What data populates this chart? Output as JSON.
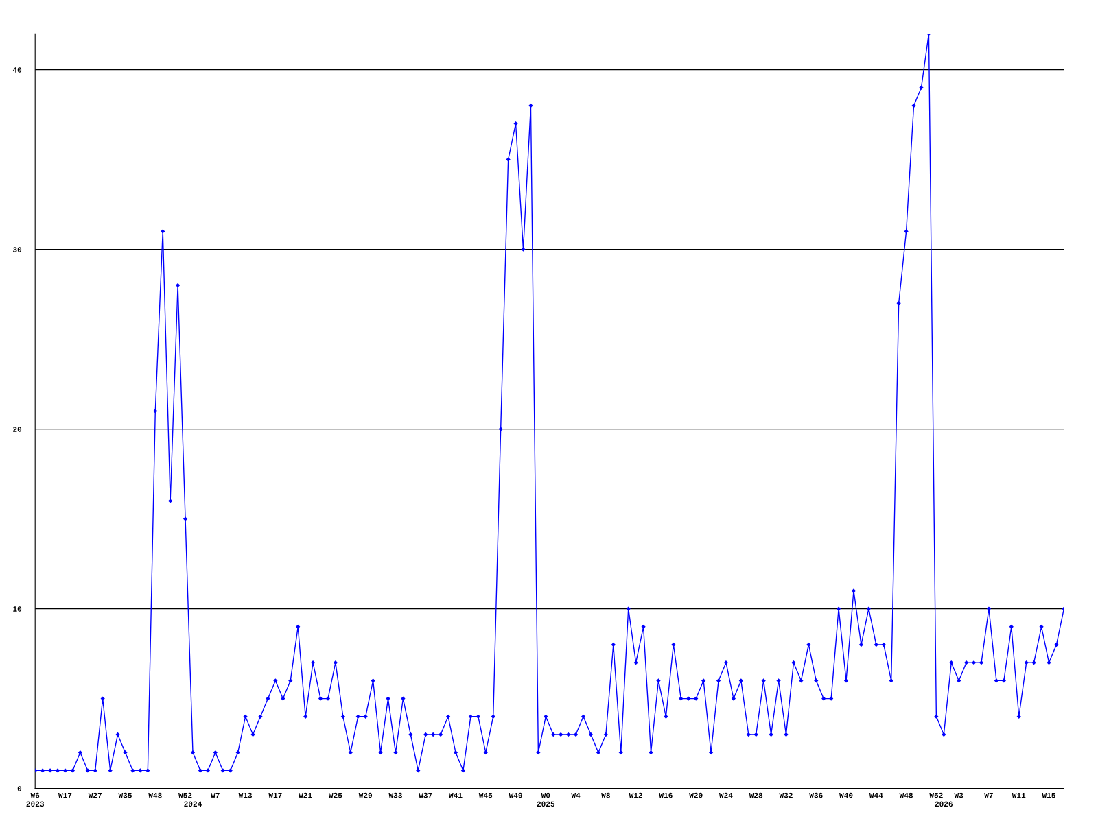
{
  "chart_data": {
    "type": "line",
    "categories": [
      "W6\n2023",
      null,
      null,
      null,
      "W17",
      null,
      null,
      null,
      "W27",
      null,
      null,
      null,
      "W35",
      null,
      null,
      null,
      "W48",
      null,
      null,
      null,
      "W52",
      "\n2024",
      null,
      null,
      "W7",
      null,
      null,
      null,
      "W13",
      null,
      null,
      null,
      "W17",
      null,
      null,
      null,
      "W21",
      null,
      null,
      null,
      "W25",
      null,
      null,
      null,
      "W29",
      null,
      null,
      null,
      "W33",
      null,
      null,
      null,
      "W37",
      null,
      null,
      null,
      "W41",
      null,
      null,
      null,
      "W45",
      null,
      null,
      null,
      "W49",
      null,
      null,
      null,
      "W0\n2025",
      null,
      null,
      null,
      "W4",
      null,
      null,
      null,
      "W8",
      null,
      null,
      null,
      "W12",
      null,
      null,
      null,
      "W16",
      null,
      null,
      null,
      "W20",
      null,
      null,
      null,
      "W24",
      null,
      null,
      null,
      "W28",
      null,
      null,
      null,
      "W32",
      null,
      null,
      null,
      "W36",
      null,
      null,
      null,
      "W40",
      null,
      null,
      null,
      "W44",
      null,
      null,
      null,
      "W48",
      null,
      null,
      null,
      "W52",
      "\n2026",
      null,
      "W3",
      null,
      null,
      null,
      "W7",
      null,
      null,
      null,
      "W11",
      null,
      null,
      null,
      "W15",
      null,
      null
    ],
    "series": [
      {
        "color": "#0000ff",
        "values": [
          1,
          1,
          1,
          1,
          1,
          1,
          2,
          1,
          1,
          5,
          1,
          3,
          2,
          1,
          1,
          1,
          21,
          31,
          16,
          28,
          15,
          2,
          1,
          1,
          2,
          1,
          1,
          2,
          4,
          3,
          4,
          5,
          6,
          5,
          6,
          9,
          4,
          7,
          5,
          5,
          7,
          4,
          2,
          4,
          4,
          6,
          2,
          5,
          2,
          5,
          3,
          1,
          3,
          3,
          3,
          4,
          2,
          1,
          4,
          4,
          2,
          4,
          20,
          35,
          37,
          30,
          38,
          2,
          4,
          3,
          3,
          3,
          3,
          4,
          3,
          2,
          3,
          8,
          2,
          10,
          7,
          9,
          2,
          6,
          4,
          8,
          5,
          5,
          5,
          6,
          2,
          6,
          7,
          5,
          6,
          3,
          3,
          6,
          3,
          6,
          3,
          7,
          6,
          8,
          6,
          5,
          5,
          10,
          6,
          11,
          8,
          10,
          8,
          8,
          6,
          27,
          31,
          38,
          39,
          42,
          4,
          3,
          7,
          6,
          7,
          7,
          7,
          10,
          6,
          6,
          9,
          4,
          7,
          7,
          9,
          7,
          8,
          10
        ]
      }
    ],
    "ylim": [
      0,
      42
    ],
    "yticks": [
      0,
      10,
      20,
      30,
      40
    ],
    "grid": "y",
    "marker": "diamond",
    "line_style": "solid"
  }
}
